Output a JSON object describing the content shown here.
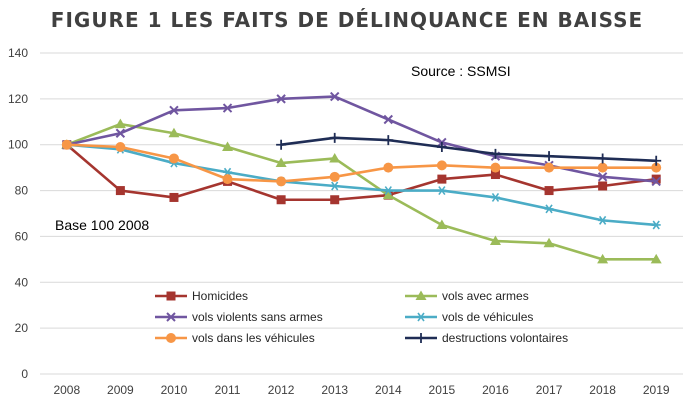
{
  "chart_data": {
    "type": "line",
    "title": "FIGURE 1 LES FAITS DE DÉLINQUANCE EN BAISSE",
    "annotations": [
      "Source : SSMSI",
      "Base 100 2008"
    ],
    "x": [
      "2008",
      "2009",
      "2010",
      "2011",
      "2012",
      "2013",
      "2014",
      "2015",
      "2016",
      "2017",
      "2018",
      "2019"
    ],
    "ylim": [
      0,
      140
    ],
    "yticks": [
      0,
      20,
      40,
      60,
      80,
      100,
      120,
      140
    ],
    "grid": true,
    "legend_position": "bottom",
    "series": [
      {
        "name": "Homicides",
        "color": "#a5352f",
        "marker": "square",
        "values": [
          100,
          80,
          77,
          84,
          76,
          76,
          78,
          85,
          87,
          80,
          82,
          85
        ]
      },
      {
        "name": "vols avec  armes",
        "color": "#9bbb59",
        "marker": "triangle",
        "values": [
          100,
          109,
          105,
          99,
          92,
          94,
          78,
          65,
          58,
          57,
          50,
          50
        ]
      },
      {
        "name": "vols violents sans armes",
        "color": "#7056a0",
        "marker": "x",
        "values": [
          100,
          105,
          115,
          116,
          120,
          121,
          111,
          101,
          95,
          91,
          86,
          84
        ]
      },
      {
        "name": "vols de véhicules",
        "color": "#4bacc6",
        "marker": "star",
        "values": [
          100,
          98,
          92,
          88,
          84,
          82,
          80,
          80,
          77,
          72,
          67,
          65
        ]
      },
      {
        "name": "vols dans les véhicules",
        "color": "#f79646",
        "marker": "circle",
        "values": [
          100,
          99,
          94,
          85,
          84,
          86,
          90,
          91,
          90,
          90,
          90,
          90
        ]
      },
      {
        "name": "destructions volontaires",
        "color": "#1f2d55",
        "marker": "plus",
        "values": [
          null,
          null,
          null,
          null,
          100,
          103,
          102,
          99,
          96,
          95,
          94,
          93
        ]
      }
    ]
  }
}
